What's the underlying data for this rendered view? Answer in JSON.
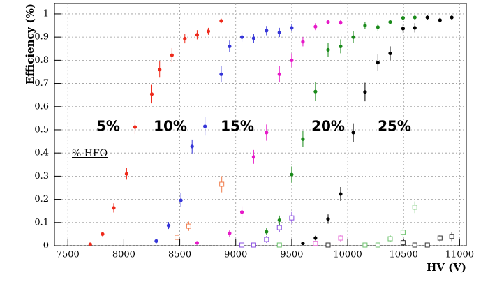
{
  "chart_data": {
    "type": "scatter",
    "x_label": "HV (V)",
    "y_label": "Efficiency (%)",
    "annotation": "% HFO",
    "xlim": [
      7380,
      11060
    ],
    "ylim": [
      0,
      1.045
    ],
    "xticks": [
      7500,
      8000,
      8500,
      9000,
      9500,
      10000,
      10500,
      11000
    ],
    "yticks": [
      0,
      0.1,
      0.2,
      0.3,
      0.4,
      0.5,
      0.6,
      0.7,
      0.8,
      0.9,
      1
    ],
    "grid": true,
    "series": [
      {
        "name": "5%",
        "color": "#ee2a1b",
        "x": [
          7700,
          7810,
          7910,
          8025,
          8100,
          8250,
          8320,
          8430,
          8545,
          8655,
          8755,
          8870
        ],
        "values": [
          0.006,
          0.05,
          0.163,
          0.31,
          0.512,
          0.654,
          0.76,
          0.822,
          0.893,
          0.91,
          0.925,
          0.97
        ],
        "errors": [
          0.005,
          0.01,
          0.02,
          0.025,
          0.03,
          0.04,
          0.035,
          0.03,
          0.02,
          0.02,
          0.015,
          0.01
        ],
        "open": {
          "color": "#f07b4a",
          "x": [
            8475,
            8580,
            8875
          ],
          "values": [
            0.036,
            0.084,
            0.265
          ],
          "errors": [
            0.015,
            0.02,
            0.035
          ]
        }
      },
      {
        "name": "10%",
        "color": "#3535d8",
        "x": [
          8290,
          8400,
          8510,
          8610,
          8725,
          8870,
          8945,
          9055,
          9160,
          9275,
          9390,
          9500
        ],
        "values": [
          0.02,
          0.087,
          0.196,
          0.428,
          0.515,
          0.74,
          0.86,
          0.9,
          0.895,
          0.928,
          0.92,
          0.94
        ],
        "errors": [
          0.01,
          0.015,
          0.03,
          0.03,
          0.04,
          0.035,
          0.025,
          0.02,
          0.02,
          0.02,
          0.02,
          0.015
        ],
        "open": {
          "color": "#8a4ee0",
          "x": [
            9055,
            9160,
            9275,
            9390,
            9500
          ],
          "values": [
            0.003,
            0.003,
            0.027,
            0.078,
            0.12
          ],
          "errors": [
            0.005,
            0.005,
            0.015,
            0.02,
            0.025
          ]
        }
      },
      {
        "name": "15%",
        "color": "#e619c8",
        "x": [
          8655,
          8945,
          9055,
          9160,
          9275,
          9390,
          9500,
          9600,
          9712,
          9825,
          9937
        ],
        "values": [
          0.012,
          0.054,
          0.145,
          0.383,
          0.488,
          0.74,
          0.8,
          0.88,
          0.945,
          0.965,
          0.963
        ],
        "errors": [
          0.005,
          0.015,
          0.025,
          0.03,
          0.035,
          0.035,
          0.03,
          0.02,
          0.015,
          0.01,
          0.01
        ],
        "open": {
          "color": "#e86fd8",
          "x": [
            9712,
            9825,
            9937
          ],
          "values": [
            0.01,
            0.003,
            0.033
          ],
          "errors": [
            0.005,
            0.005,
            0.015
          ]
        }
      },
      {
        "name": "20%",
        "color": "#1a8a1a",
        "x": [
          9275,
          9390,
          9500,
          9600,
          9712,
          9825,
          9937,
          10050,
          10155,
          10270,
          10380,
          10495,
          10600
        ],
        "values": [
          0.06,
          0.11,
          0.307,
          0.46,
          0.665,
          0.845,
          0.86,
          0.9,
          0.95,
          0.943,
          0.965,
          0.983,
          0.985
        ],
        "errors": [
          0.015,
          0.02,
          0.035,
          0.035,
          0.04,
          0.03,
          0.03,
          0.025,
          0.015,
          0.015,
          0.01,
          0.01,
          0.01
        ],
        "open": {
          "color": "#6cc26c",
          "x": [
            9390,
            10155,
            10270,
            10380,
            10495,
            10600
          ],
          "values": [
            0.003,
            0.003,
            0.003,
            0.03,
            0.058,
            0.166
          ],
          "errors": [
            0.005,
            0.005,
            0.005,
            0.015,
            0.02,
            0.025
          ]
        }
      },
      {
        "name": "25%",
        "color": "#000000",
        "x": [
          9600,
          9712,
          9825,
          9937,
          10050,
          10155,
          10270,
          10380,
          10495,
          10600,
          10712,
          10825,
          10930
        ],
        "values": [
          0.01,
          0.033,
          0.115,
          0.223,
          0.488,
          0.663,
          0.79,
          0.83,
          0.937,
          0.94,
          0.985,
          0.973,
          0.985
        ],
        "errors": [
          0.005,
          0.01,
          0.02,
          0.03,
          0.04,
          0.04,
          0.035,
          0.03,
          0.02,
          0.02,
          0.01,
          0.01,
          0.01
        ],
        "open": {
          "color": "#333333",
          "x": [
            9825,
            10495,
            10600,
            10712,
            10825,
            10930
          ],
          "values": [
            0.003,
            0.013,
            0.003,
            0.003,
            0.033,
            0.04
          ],
          "errors": [
            0.005,
            0.01,
            0.005,
            0.005,
            0.015,
            0.02
          ]
        }
      }
    ]
  }
}
